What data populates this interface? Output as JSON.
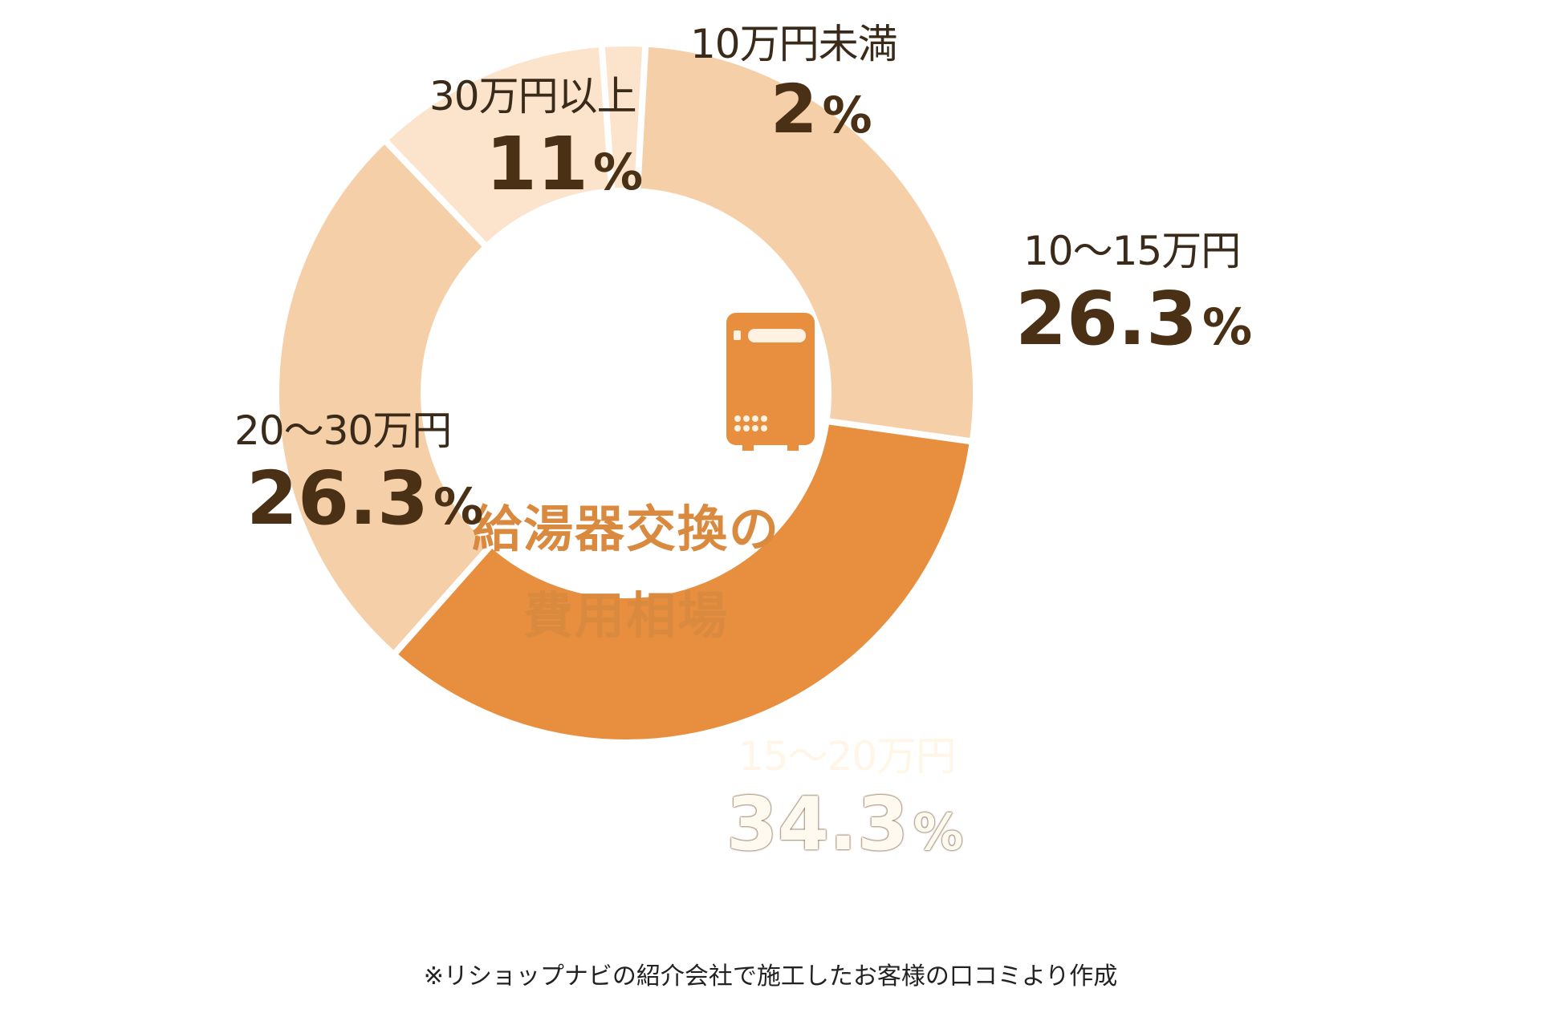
{
  "chart_data": {
    "type": "pie",
    "subtype": "donut",
    "title": "給湯器交換の費用相場",
    "categories": [
      "10万円未満",
      "10〜15万円",
      "15〜20万円",
      "20〜30万円",
      "30万円以上"
    ],
    "values": [
      2,
      26.3,
      34.3,
      26.3,
      11
    ],
    "unit": "%",
    "colors": [
      "#fbe3cc",
      "#f5cfa8",
      "#e88f3f",
      "#f5cfa8",
      "#fbe3cc"
    ],
    "annotations": [
      "※リショップナビの紹介会社で施工したお客様の口コミより作成"
    ],
    "legend": "none (labels placed on slices)"
  },
  "center": {
    "icon": "water-heater-icon",
    "title_line1": "給湯器交換の",
    "title_line2": "費用相場",
    "accent_color": "#e88f3f"
  },
  "labels": [
    {
      "category": "10万円未満",
      "value": "2",
      "sign": "%"
    },
    {
      "category": "10〜15万円",
      "value": "26.3",
      "sign": "%"
    },
    {
      "category": "15〜20万円",
      "value": "34.3",
      "sign": "%"
    },
    {
      "category": "20〜30万円",
      "value": "26.3",
      "sign": "%"
    },
    {
      "category": "30万円以上",
      "value": "11",
      "sign": "%"
    }
  ],
  "footnote": "※リショップナビの紹介会社で施工したお客様の口コミより作成"
}
